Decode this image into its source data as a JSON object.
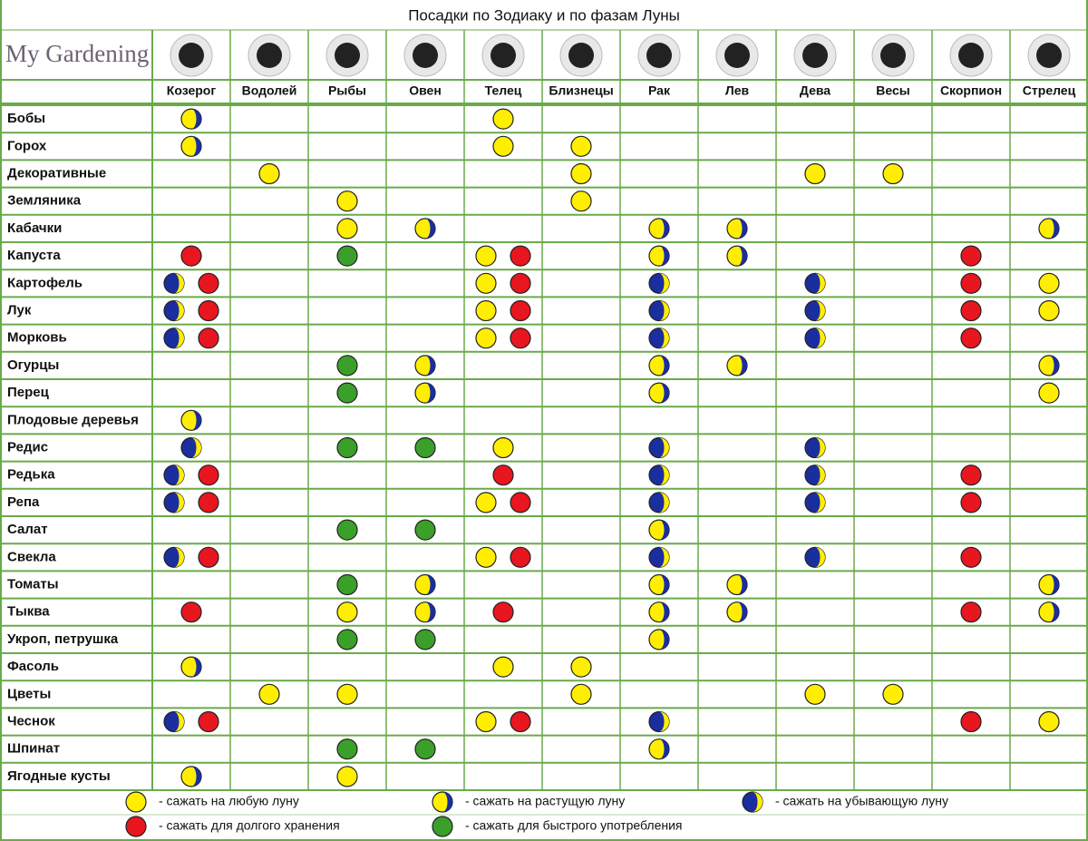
{
  "title": "Посадки по Зодиаку и по фазам Луны",
  "logo": "My Gardening",
  "columns": [
    "Козерог",
    "Водолей",
    "Рыбы",
    "Овен",
    "Телец",
    "Близнецы",
    "Рак",
    "Лев",
    "Дева",
    "Весы",
    "Скорпион",
    "Стрелец"
  ],
  "legend": [
    {
      "color": "#ffee00",
      "label": "- сажать на любую луну"
    },
    {
      "color": "#ffee00",
      "crescent": "#1a2ea0",
      "label": "- сажать на растущую луну"
    },
    {
      "color": "#1a2ea0",
      "crescent": "#ffee00",
      "label": "- сажать на убывающую луну"
    },
    {
      "color": "#e8161e",
      "label": "- сажать для долгого хранения"
    },
    {
      "color": "#3aa02a",
      "label": "- сажать для быстрого употребления"
    }
  ],
  "rows": [
    {
      "label": "Бобы",
      "cells": [
        [
          1
        ],
        [],
        [],
        [],
        [
          0
        ],
        [],
        [],
        [],
        [],
        [],
        [],
        []
      ]
    },
    {
      "label": "Горох",
      "cells": [
        [
          1
        ],
        [],
        [],
        [],
        [
          0
        ],
        [
          0
        ],
        [],
        [],
        [],
        [],
        [],
        []
      ]
    },
    {
      "label": "Декоративные",
      "cells": [
        [],
        [
          0
        ],
        [],
        [],
        [],
        [
          0
        ],
        [],
        [],
        [
          0
        ],
        [
          0
        ],
        [],
        []
      ]
    },
    {
      "label": "Земляника",
      "cells": [
        [],
        [],
        [
          0
        ],
        [],
        [],
        [
          0
        ],
        [],
        [],
        [],
        [],
        [],
        []
      ]
    },
    {
      "label": "Кабачки",
      "cells": [
        [],
        [],
        [
          0
        ],
        [
          1
        ],
        [],
        [],
        [
          1
        ],
        [
          1
        ],
        [],
        [],
        [],
        [
          1
        ]
      ]
    },
    {
      "label": "Капуста",
      "cells": [
        [
          3
        ],
        [],
        [
          4
        ],
        [],
        [
          0,
          3
        ],
        [],
        [
          1
        ],
        [
          1
        ],
        [],
        [],
        [
          3
        ],
        []
      ]
    },
    {
      "label": "Картофель",
      "cells": [
        [
          2,
          3
        ],
        [],
        [],
        [],
        [
          0,
          3
        ],
        [],
        [
          2
        ],
        [],
        [
          2
        ],
        [],
        [
          3
        ],
        [
          0
        ]
      ]
    },
    {
      "label": "Лук",
      "cells": [
        [
          2,
          3
        ],
        [],
        [],
        [],
        [
          0,
          3
        ],
        [],
        [
          2
        ],
        [],
        [
          2
        ],
        [],
        [
          3
        ],
        [
          0
        ]
      ]
    },
    {
      "label": "Морковь",
      "cells": [
        [
          2,
          3
        ],
        [],
        [],
        [],
        [
          0,
          3
        ],
        [],
        [
          2
        ],
        [],
        [
          2
        ],
        [],
        [
          3
        ],
        []
      ]
    },
    {
      "label": "Огурцы",
      "cells": [
        [],
        [],
        [
          4
        ],
        [
          1
        ],
        [],
        [],
        [
          1
        ],
        [
          1
        ],
        [],
        [],
        [],
        [
          1
        ]
      ]
    },
    {
      "label": "Перец",
      "cells": [
        [],
        [],
        [
          4
        ],
        [
          1
        ],
        [],
        [],
        [
          1
        ],
        [],
        [],
        [],
        [],
        [
          0
        ]
      ]
    },
    {
      "label": "Плодовые деревья",
      "cells": [
        [
          1
        ],
        [],
        [],
        [],
        [],
        [],
        [],
        [],
        [],
        [],
        [],
        []
      ]
    },
    {
      "label": "Редис",
      "cells": [
        [
          2
        ],
        [],
        [
          4
        ],
        [
          4
        ],
        [
          0
        ],
        [],
        [
          2
        ],
        [],
        [
          2
        ],
        [],
        [],
        []
      ]
    },
    {
      "label": "Редька",
      "cells": [
        [
          2,
          3
        ],
        [],
        [],
        [],
        [
          3
        ],
        [],
        [
          2
        ],
        [],
        [
          2
        ],
        [],
        [
          3
        ],
        []
      ]
    },
    {
      "label": "Репа",
      "cells": [
        [
          2,
          3
        ],
        [],
        [],
        [],
        [
          0,
          3
        ],
        [],
        [
          2
        ],
        [],
        [
          2
        ],
        [],
        [
          3
        ],
        []
      ]
    },
    {
      "label": "Салат",
      "cells": [
        [],
        [],
        [
          4
        ],
        [
          4
        ],
        [],
        [],
        [
          1
        ],
        [],
        [],
        [],
        [],
        []
      ]
    },
    {
      "label": "Свекла",
      "cells": [
        [
          2,
          3
        ],
        [],
        [],
        [],
        [
          0,
          3
        ],
        [],
        [
          2
        ],
        [],
        [
          2
        ],
        [],
        [
          3
        ],
        []
      ]
    },
    {
      "label": "Томаты",
      "cells": [
        [],
        [],
        [
          4
        ],
        [
          1
        ],
        [],
        [],
        [
          1
        ],
        [
          1
        ],
        [],
        [],
        [],
        [
          1
        ]
      ]
    },
    {
      "label": "Тыква",
      "cells": [
        [
          3
        ],
        [],
        [
          0
        ],
        [
          1
        ],
        [
          3
        ],
        [],
        [
          1
        ],
        [
          1
        ],
        [],
        [],
        [
          3
        ],
        [
          1
        ]
      ]
    },
    {
      "label": "Укроп, петрушка",
      "cells": [
        [],
        [],
        [
          4
        ],
        [
          4
        ],
        [],
        [],
        [
          1
        ],
        [],
        [],
        [],
        [],
        []
      ]
    },
    {
      "label": "Фасоль",
      "cells": [
        [
          1
        ],
        [],
        [],
        [],
        [
          0
        ],
        [
          0
        ],
        [],
        [],
        [],
        [],
        [],
        []
      ]
    },
    {
      "label": "Цветы",
      "cells": [
        [],
        [
          0
        ],
        [
          0
        ],
        [],
        [],
        [
          0
        ],
        [],
        [],
        [
          0
        ],
        [
          0
        ],
        [],
        []
      ]
    },
    {
      "label": "Чеснок",
      "cells": [
        [
          2,
          3
        ],
        [],
        [],
        [],
        [
          0,
          3
        ],
        [],
        [
          2
        ],
        [],
        [],
        [],
        [
          3
        ],
        [
          0
        ]
      ]
    },
    {
      "label": "Шпинат",
      "cells": [
        [],
        [],
        [
          4
        ],
        [
          4
        ],
        [],
        [],
        [
          1
        ],
        [],
        [],
        [],
        [],
        []
      ]
    },
    {
      "label": "Ягодные кусты",
      "cells": [
        [
          1
        ],
        [],
        [
          0
        ],
        [],
        [],
        [],
        [],
        [],
        [],
        [],
        [],
        []
      ]
    }
  ]
}
